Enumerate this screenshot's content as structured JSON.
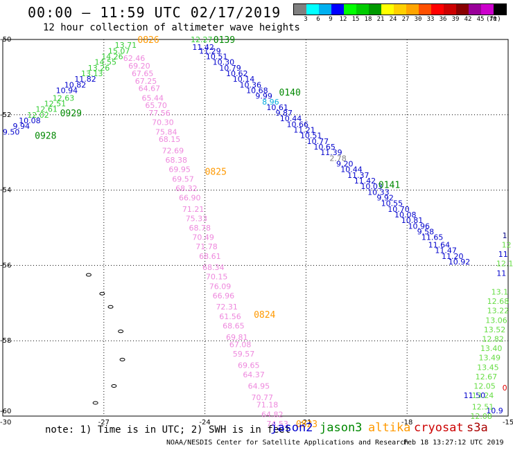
{
  "title": "00:00 – 11:59 UTC 02/17/2019",
  "subtitle": "12 hour collection of altimeter wave heights",
  "colorbar": {
    "colors": [
      "#808080",
      "#00ffff",
      "#00b0f0",
      "#0000ff",
      "#00ff00",
      "#00cc00",
      "#009900",
      "#ffff00",
      "#ffd000",
      "#ffa500",
      "#ff5000",
      "#ff0000",
      "#cc0000",
      "#880000",
      "#990099",
      "#cc00cc",
      "#000000"
    ],
    "labels": [
      "3",
      "6",
      "9",
      "12",
      "15",
      "18",
      "21",
      "24",
      "27",
      "30",
      "33",
      "36",
      "39",
      "42",
      "45",
      "70"
    ],
    "unit": "(ft)"
  },
  "map": {
    "lon_range": [
      -30,
      -15
    ],
    "lat_range": [
      -60,
      -50
    ],
    "lon_ticks": [
      {
        "value": -27,
        "label": "-27"
      },
      {
        "value": -24,
        "label": "-24"
      },
      {
        "value": -21,
        "label": "-21"
      },
      {
        "value": -18,
        "label": "-18"
      },
      {
        "value": -15,
        "label": "-15"
      }
    ],
    "lat_ticks": [
      {
        "value": -50,
        "label": "-50"
      },
      {
        "value": -52,
        "label": "-52"
      },
      {
        "value": -54,
        "label": "-54"
      },
      {
        "value": -56,
        "label": "-56"
      },
      {
        "value": -58,
        "label": "-58"
      },
      {
        "value": -60,
        "label": "-60"
      }
    ],
    "corner_label": "-30",
    "land_icon": "island-outline-icon",
    "islands": [
      {
        "lon": -27.45,
        "lat": -56.25
      },
      {
        "lon": -27.05,
        "lat": -56.75
      },
      {
        "lon": -26.8,
        "lat": -57.1
      },
      {
        "lon": -26.5,
        "lat": -57.75
      },
      {
        "lon": -26.45,
        "lat": -58.5
      },
      {
        "lon": -26.7,
        "lat": -59.2
      },
      {
        "lon": -27.25,
        "lat": -59.65
      }
    ]
  },
  "tracks": [
    {
      "satellite": "jason2",
      "points": [
        {
          "lon": -29.75,
          "lat": -52.45,
          "value": "9.50",
          "color": "#0000cc"
        },
        {
          "lon": -29.45,
          "lat": -52.3,
          "value": "9.94",
          "color": "#0000cc"
        },
        {
          "lon": -29.2,
          "lat": -52.15,
          "value": "10.08",
          "color": "#0000cc"
        },
        {
          "lon": -28.1,
          "lat": -51.35,
          "value": "10.94",
          "color": "#0000cc"
        },
        {
          "lon": -27.85,
          "lat": -51.2,
          "value": "10.82",
          "color": "#0000cc"
        },
        {
          "lon": -27.55,
          "lat": -51.05,
          "value": "11.82",
          "color": "#0000cc"
        },
        {
          "lon": -24.05,
          "lat": -50.2,
          "value": "11.42",
          "color": "#0000cc"
        },
        {
          "lon": -23.85,
          "lat": -50.3,
          "value": "11.29",
          "color": "#0000cc"
        },
        {
          "lon": -23.65,
          "lat": -50.45,
          "value": "10.51",
          "color": "#0000cc"
        },
        {
          "lon": -23.45,
          "lat": -50.6,
          "value": "10.30",
          "color": "#0000cc"
        },
        {
          "lon": -23.25,
          "lat": -50.75,
          "value": "10.79",
          "color": "#0000cc"
        },
        {
          "lon": -23.05,
          "lat": -50.9,
          "value": "10.62",
          "color": "#0000cc"
        },
        {
          "lon": -22.85,
          "lat": -51.05,
          "value": "10.14",
          "color": "#0000cc"
        },
        {
          "lon": -22.65,
          "lat": -51.2,
          "value": "10.36",
          "color": "#0000cc"
        },
        {
          "lon": -22.45,
          "lat": -51.35,
          "value": "10.68",
          "color": "#0000cc"
        },
        {
          "lon": -22.25,
          "lat": -51.5,
          "value": "9.99",
          "color": "#0000cc"
        },
        {
          "lon": -21.85,
          "lat": -51.8,
          "value": "10.61",
          "color": "#0000cc"
        },
        {
          "lon": -21.65,
          "lat": -51.95,
          "value": "9.87",
          "color": "#0000cc"
        },
        {
          "lon": -21.45,
          "lat": -52.1,
          "value": "10.44",
          "color": "#0000cc"
        },
        {
          "lon": -21.25,
          "lat": -52.25,
          "value": "10.66",
          "color": "#0000cc"
        },
        {
          "lon": -21.05,
          "lat": -52.4,
          "value": "11.21",
          "color": "#0000cc"
        },
        {
          "lon": -20.85,
          "lat": -52.55,
          "value": "10.51",
          "color": "#0000cc"
        },
        {
          "lon": -20.65,
          "lat": -52.7,
          "value": "10.77",
          "color": "#0000cc"
        },
        {
          "lon": -20.45,
          "lat": -52.85,
          "value": "10.65",
          "color": "#0000cc"
        },
        {
          "lon": -20.25,
          "lat": -53.0,
          "value": "11.39",
          "color": "#0000cc"
        },
        {
          "lon": -19.85,
          "lat": -53.3,
          "value": "9.20",
          "color": "#0000cc"
        },
        {
          "lon": -19.65,
          "lat": -53.45,
          "value": "10.44",
          "color": "#0000cc"
        },
        {
          "lon": -19.45,
          "lat": -53.6,
          "value": "11.37",
          "color": "#0000cc"
        },
        {
          "lon": -19.25,
          "lat": -53.75,
          "value": "11.42",
          "color": "#0000cc"
        },
        {
          "lon": -19.05,
          "lat": -53.9,
          "value": "10.03",
          "color": "#0000cc"
        },
        {
          "lon": -18.85,
          "lat": -54.05,
          "value": "10.33",
          "color": "#0000cc"
        },
        {
          "lon": -18.65,
          "lat": -54.2,
          "value": "9.92",
          "color": "#0000cc"
        },
        {
          "lon": -18.45,
          "lat": -54.35,
          "value": "10.55",
          "color": "#0000cc"
        },
        {
          "lon": -18.25,
          "lat": -54.5,
          "value": "10.70",
          "color": "#0000cc"
        },
        {
          "lon": -18.05,
          "lat": -54.65,
          "value": "10.08",
          "color": "#0000cc"
        },
        {
          "lon": -17.85,
          "lat": -54.8,
          "value": "10.81",
          "color": "#0000cc"
        },
        {
          "lon": -17.65,
          "lat": -54.95,
          "value": "10.96",
          "color": "#0000cc"
        },
        {
          "lon": -17.45,
          "lat": -55.1,
          "value": "9.58",
          "color": "#0000cc"
        },
        {
          "lon": -17.25,
          "lat": -55.25,
          "value": "11.65",
          "color": "#0000cc"
        },
        {
          "lon": -17.05,
          "lat": -55.45,
          "value": "11.64",
          "color": "#0000cc"
        },
        {
          "lon": -16.85,
          "lat": -55.6,
          "value": "11.47",
          "color": "#0000cc"
        },
        {
          "lon": -16.65,
          "lat": -55.75,
          "value": "11.20",
          "color": "#0000cc"
        },
        {
          "lon": -16.45,
          "lat": -55.9,
          "value": "10.92",
          "color": "#0000cc"
        },
        {
          "lon": -16.0,
          "lat": -59.45,
          "value": "11.50",
          "color": "#0000cc"
        },
        {
          "lon": -15.4,
          "lat": -59.85,
          "value": "10.9",
          "color": "#0000cc"
        }
      ]
    },
    {
      "satellite": "jason3",
      "points": [
        {
          "lon": -28.95,
          "lat": -52.0,
          "value": "12.02",
          "color": "#33cc33"
        },
        {
          "lon": -28.7,
          "lat": -51.85,
          "value": "12.61",
          "color": "#33cc33"
        },
        {
          "lon": -28.45,
          "lat": -51.7,
          "value": "12.51",
          "color": "#33cc33"
        },
        {
          "lon": -28.2,
          "lat": -51.55,
          "value": "12.63",
          "color": "#33cc33"
        },
        {
          "lon": -27.35,
          "lat": -50.9,
          "value": "13.13",
          "color": "#33cc33"
        },
        {
          "lon": -27.15,
          "lat": -50.75,
          "value": "13.26",
          "color": "#33cc33"
        },
        {
          "lon": -26.95,
          "lat": -50.6,
          "value": "14.55",
          "color": "#33cc33"
        },
        {
          "lon": -26.75,
          "lat": -50.45,
          "value": "14.26",
          "color": "#33cc33"
        },
        {
          "lon": -26.55,
          "lat": -50.3,
          "value": "15.07",
          "color": "#33cc33"
        },
        {
          "lon": -26.35,
          "lat": -50.15,
          "value": "13.71",
          "color": "#33cc33"
        },
        {
          "lon": -24.1,
          "lat": -50.0,
          "value": "12.27",
          "color": "#33cc33"
        },
        {
          "lon": -15.05,
          "lat": -55.45,
          "value": "12",
          "color": "#66dd44"
        },
        {
          "lon": -15.1,
          "lat": -55.95,
          "value": "12.1",
          "color": "#66dd44"
        },
        {
          "lon": -15.25,
          "lat": -56.7,
          "value": "13.1",
          "color": "#66dd44"
        },
        {
          "lon": -15.3,
          "lat": -56.95,
          "value": "12.68",
          "color": "#66dd44"
        },
        {
          "lon": -15.3,
          "lat": -57.2,
          "value": "13.22",
          "color": "#66dd44"
        },
        {
          "lon": -15.35,
          "lat": -57.45,
          "value": "13.06",
          "color": "#66dd44"
        },
        {
          "lon": -15.4,
          "lat": -57.7,
          "value": "13.52",
          "color": "#66dd44"
        },
        {
          "lon": -15.45,
          "lat": -57.95,
          "value": "12.82",
          "color": "#66dd44"
        },
        {
          "lon": -15.5,
          "lat": -58.2,
          "value": "13.40",
          "color": "#66dd44"
        },
        {
          "lon": -15.55,
          "lat": -58.45,
          "value": "13.49",
          "color": "#66dd44"
        },
        {
          "lon": -15.6,
          "lat": -58.7,
          "value": "13.45",
          "color": "#66dd44"
        },
        {
          "lon": -15.65,
          "lat": -58.95,
          "value": "12.67",
          "color": "#66dd44"
        },
        {
          "lon": -15.7,
          "lat": -59.2,
          "value": "12.05",
          "color": "#66dd44"
        },
        {
          "lon": -15.75,
          "lat": -59.45,
          "value": "13.24",
          "color": "#66dd44"
        },
        {
          "lon": -15.75,
          "lat": -59.75,
          "value": "12.51",
          "color": "#66dd44"
        },
        {
          "lon": -15.8,
          "lat": -60.0,
          "value": "12.08",
          "color": "#66dd44"
        }
      ]
    },
    {
      "satellite": "altika",
      "points": [
        {
          "lon": -26.1,
          "lat": -50.5,
          "value": "62.46",
          "color": "#ee88dd"
        },
        {
          "lon": -25.95,
          "lat": -50.7,
          "value": "69.20",
          "color": "#ee88dd"
        },
        {
          "lon": -25.85,
          "lat": -50.9,
          "value": "67.65",
          "color": "#ee88dd"
        },
        {
          "lon": -25.75,
          "lat": -51.1,
          "value": "67.25",
          "color": "#ee88dd"
        },
        {
          "lon": -25.65,
          "lat": -51.3,
          "value": "64.67",
          "color": "#ee88dd"
        },
        {
          "lon": -25.55,
          "lat": -51.55,
          "value": "65.44",
          "color": "#ee88dd"
        },
        {
          "lon": -25.45,
          "lat": -51.75,
          "value": "65.70",
          "color": "#ee88dd"
        },
        {
          "lon": -25.35,
          "lat": -51.95,
          "value": "77.56",
          "color": "#ee88dd"
        },
        {
          "lon": -25.25,
          "lat": -52.2,
          "value": "70.30",
          "color": "#ee88dd"
        },
        {
          "lon": -25.15,
          "lat": -52.45,
          "value": "75.84",
          "color": "#ee88dd"
        },
        {
          "lon": -25.05,
          "lat": -52.65,
          "value": "68.15",
          "color": "#ee88dd"
        },
        {
          "lon": -24.95,
          "lat": -52.95,
          "value": "72.69",
          "color": "#ee88dd"
        },
        {
          "lon": -24.85,
          "lat": -53.2,
          "value": "68.38",
          "color": "#ee88dd"
        },
        {
          "lon": -24.75,
          "lat": -53.45,
          "value": "69.95",
          "color": "#ee88dd"
        },
        {
          "lon": -24.65,
          "lat": -53.7,
          "value": "69.57",
          "color": "#ee88dd"
        },
        {
          "lon": -24.55,
          "lat": -53.95,
          "value": "68.32",
          "color": "#ee88dd"
        },
        {
          "lon": -24.45,
          "lat": -54.2,
          "value": "66.90",
          "color": "#ee88dd"
        },
        {
          "lon": -24.35,
          "lat": -54.5,
          "value": "71.21",
          "color": "#ee88dd"
        },
        {
          "lon": -24.25,
          "lat": -54.75,
          "value": "75.33",
          "color": "#ee88dd"
        },
        {
          "lon": -24.15,
          "lat": -55.0,
          "value": "68.78",
          "color": "#ee88dd"
        },
        {
          "lon": -24.05,
          "lat": -55.25,
          "value": "70.49",
          "color": "#ee88dd"
        },
        {
          "lon": -23.95,
          "lat": -55.5,
          "value": "71.78",
          "color": "#ee88dd"
        },
        {
          "lon": -23.85,
          "lat": -55.75,
          "value": "68.61",
          "color": "#ee88dd"
        },
        {
          "lon": -23.75,
          "lat": -56.05,
          "value": "68.34",
          "color": "#ee88dd"
        },
        {
          "lon": -23.65,
          "lat": -56.3,
          "value": "70.15",
          "color": "#ee88dd"
        },
        {
          "lon": -23.55,
          "lat": -56.55,
          "value": "76.09",
          "color": "#ee88dd"
        },
        {
          "lon": -23.45,
          "lat": -56.8,
          "value": "66.96",
          "color": "#ee88dd"
        },
        {
          "lon": -23.35,
          "lat": -57.1,
          "value": "72.31",
          "color": "#ee88dd"
        },
        {
          "lon": -23.25,
          "lat": -57.35,
          "value": "61.56",
          "color": "#ee88dd"
        },
        {
          "lon": -23.15,
          "lat": -57.6,
          "value": "68.65",
          "color": "#ee88dd"
        },
        {
          "lon": -23.05,
          "lat": -57.9,
          "value": "69.81",
          "color": "#ee88dd"
        },
        {
          "lon": -22.95,
          "lat": -58.1,
          "value": "67.08",
          "color": "#ee88dd"
        },
        {
          "lon": -22.85,
          "lat": -58.35,
          "value": "59.57",
          "color": "#ee88dd"
        },
        {
          "lon": -22.7,
          "lat": -58.65,
          "value": "69.65",
          "color": "#ee88dd"
        },
        {
          "lon": -22.55,
          "lat": -58.9,
          "value": "64.37",
          "color": "#ee88dd"
        },
        {
          "lon": -22.4,
          "lat": -59.2,
          "value": "64.95",
          "color": "#ee88dd"
        },
        {
          "lon": -22.3,
          "lat": -59.5,
          "value": "70.77",
          "color": "#ee88dd"
        },
        {
          "lon": -22.15,
          "lat": -59.7,
          "value": "71.18",
          "color": "#ee88dd"
        },
        {
          "lon": -22.0,
          "lat": -59.95,
          "value": "64.82",
          "color": "#ee88dd"
        },
        {
          "lon": -21.85,
          "lat": -60.2,
          "value": "74.53",
          "color": "#ee88dd"
        }
      ]
    },
    {
      "satellite": "other",
      "points": [
        {
          "lon": -22.05,
          "lat": -51.65,
          "value": "8.96",
          "color": "#00aadd"
        },
        {
          "lon": -20.05,
          "lat": -53.15,
          "value": "2.78",
          "color": "#808080"
        },
        {
          "lon": -15.1,
          "lat": -55.2,
          "value": "1",
          "color": "#000080"
        },
        {
          "lon": -15.15,
          "lat": -55.7,
          "value": "11",
          "color": "#0000cc"
        },
        {
          "lon": -15.2,
          "lat": -56.2,
          "value": "11",
          "color": "#0000cc"
        },
        {
          "lon": -15.1,
          "lat": -59.25,
          "value": "0",
          "color": "#dd0000"
        }
      ]
    }
  ],
  "time_labels": [
    {
      "text": "0826",
      "lon": -26.0,
      "lat": -50.0,
      "color": "#ff9900"
    },
    {
      "text": "0139",
      "lon": -23.75,
      "lat": -50.0,
      "color": "#008800"
    },
    {
      "text": "0140",
      "lon": -21.8,
      "lat": -51.4,
      "color": "#008800"
    },
    {
      "text": "0929",
      "lon": -28.3,
      "lat": -51.95,
      "color": "#008800"
    },
    {
      "text": "0928",
      "lon": -29.05,
      "lat": -52.55,
      "color": "#008800"
    },
    {
      "text": "0825",
      "lon": -24.0,
      "lat": -53.5,
      "color": "#ff9900"
    },
    {
      "text": "0141",
      "lon": -18.85,
      "lat": -53.85,
      "color": "#008800"
    },
    {
      "text": "0824",
      "lon": -22.55,
      "lat": -57.3,
      "color": "#ff9900"
    },
    {
      "text": "0823",
      "lon": -21.3,
      "lat": -60.2,
      "color": "#ff9900"
    }
  ],
  "footer": {
    "note": "note: 1) Time is in UTC; 2) SWH is in feet",
    "satellites": [
      {
        "name": "jason2",
        "color": "#0000cc"
      },
      {
        "name": "jason3",
        "color": "#008800"
      },
      {
        "name": "altika",
        "color": "#ff9900"
      },
      {
        "name": "cryosat",
        "color": "#cc0000"
      },
      {
        "name": "s3a",
        "color": "#aa0000"
      }
    ],
    "credit": "NOAA/NESDIS Center for Satellite Applications and Research",
    "generated": "Feb 18 13:27:12 UTC 2019"
  }
}
